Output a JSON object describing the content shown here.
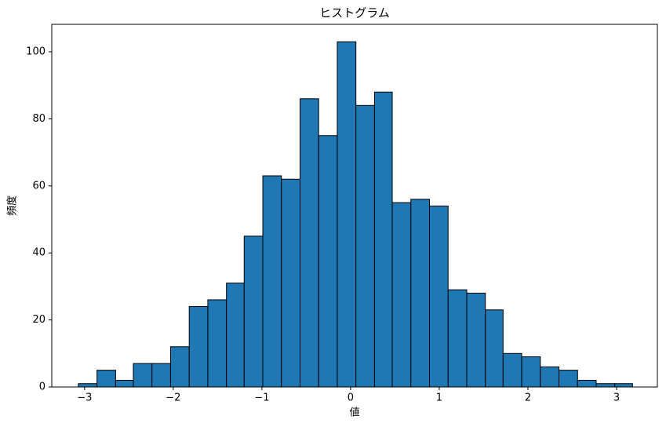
{
  "chart_data": {
    "type": "histogram",
    "title": "ヒストグラム",
    "x_label": "値",
    "y_label": "頻度",
    "bins": [
      -3.07,
      -2.86,
      -2.65,
      -2.45,
      -2.24,
      -2.03,
      -1.82,
      -1.61,
      -1.4,
      -1.2,
      -0.99,
      -0.78,
      -0.57,
      -0.36,
      -0.15,
      0.06,
      0.27,
      0.47,
      0.68,
      0.89,
      1.1,
      1.31,
      1.52,
      1.72,
      1.93,
      2.14,
      2.35,
      2.56,
      2.77,
      2.98,
      3.18
    ],
    "values": [
      1,
      5,
      2,
      7,
      7,
      12,
      24,
      26,
      31,
      45,
      63,
      62,
      86,
      75,
      103,
      84,
      88,
      55,
      56,
      54,
      29,
      28,
      23,
      10,
      9,
      6,
      5,
      2,
      1,
      1
    ],
    "color": "#1f77b4",
    "edgecolor": "#000000",
    "xlim": [
      -3.37,
      3.46
    ],
    "ylim": [
      0,
      108.2
    ],
    "xticks": [
      {
        "value": -3,
        "label": "−3"
      },
      {
        "value": -2,
        "label": "−2"
      },
      {
        "value": -1,
        "label": "−1"
      },
      0,
      1,
      2,
      3
    ],
    "yticks": [
      0,
      20,
      40,
      60,
      80,
      100
    ]
  }
}
